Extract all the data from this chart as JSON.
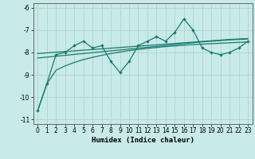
{
  "xlabel": "Humidex (Indice chaleur)",
  "bg_color": "#c8eae8",
  "line_color": "#1a7a6e",
  "grid_color": "#b0d8d4",
  "x_data": [
    0,
    1,
    2,
    3,
    4,
    5,
    6,
    7,
    8,
    9,
    10,
    11,
    12,
    13,
    14,
    15,
    16,
    17,
    18,
    19,
    20,
    21,
    22,
    23
  ],
  "y_jagged": [
    -10.6,
    -9.4,
    -8.1,
    -8.0,
    -7.7,
    -7.5,
    -7.8,
    -7.7,
    -8.4,
    -8.9,
    -8.4,
    -7.7,
    -7.5,
    -7.3,
    -7.5,
    -7.1,
    -6.5,
    -7.0,
    -7.8,
    -8.0,
    -8.1,
    -8.0,
    -7.8,
    -7.5
  ],
  "y_smooth1": [
    -8.05,
    -8.02,
    -7.99,
    -7.96,
    -7.93,
    -7.9,
    -7.87,
    -7.84,
    -7.81,
    -7.78,
    -7.75,
    -7.72,
    -7.69,
    -7.66,
    -7.63,
    -7.6,
    -7.57,
    -7.54,
    -7.51,
    -7.48,
    -7.45,
    -7.42,
    -7.4,
    -7.38
  ],
  "y_smooth2": [
    -8.25,
    -8.21,
    -8.17,
    -8.13,
    -8.09,
    -8.05,
    -8.01,
    -7.97,
    -7.93,
    -7.89,
    -7.85,
    -7.81,
    -7.77,
    -7.73,
    -7.69,
    -7.65,
    -7.61,
    -7.57,
    -7.53,
    -7.5,
    -7.47,
    -7.44,
    -7.42,
    -7.4
  ],
  "y_monotone": [
    -10.6,
    -9.4,
    -8.8,
    -8.6,
    -8.45,
    -8.32,
    -8.22,
    -8.13,
    -8.05,
    -7.98,
    -7.92,
    -7.87,
    -7.82,
    -7.78,
    -7.74,
    -7.71,
    -7.68,
    -7.65,
    -7.63,
    -7.61,
    -7.59,
    -7.57,
    -7.55,
    -7.53
  ],
  "ylim": [
    -11.2,
    -5.8
  ],
  "xlim": [
    -0.5,
    23.5
  ],
  "yticks": [
    -11,
    -10,
    -9,
    -8,
    -7,
    -6
  ],
  "xticks": [
    0,
    1,
    2,
    3,
    4,
    5,
    6,
    7,
    8,
    9,
    10,
    11,
    12,
    13,
    14,
    15,
    16,
    17,
    18,
    19,
    20,
    21,
    22,
    23
  ]
}
